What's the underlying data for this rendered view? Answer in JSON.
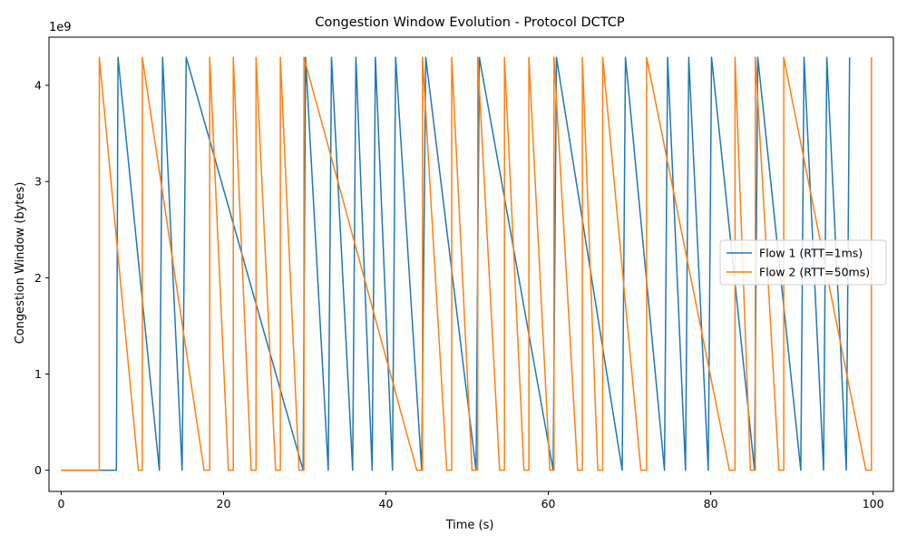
{
  "chart_data": {
    "type": "line",
    "title": "Congestion Window Evolution - Protocol DCTCP",
    "xlabel": "Time (s)",
    "ylabel": "Congestion Window (bytes)",
    "y_offset_label": "1e9",
    "xlim": [
      -1.5,
      102.5
    ],
    "ylim": [
      -0.22,
      4.5
    ],
    "y_scale_multiplier": 1000000000,
    "x_ticks": [
      0,
      20,
      40,
      60,
      80,
      100
    ],
    "y_ticks": [
      0,
      1,
      2,
      3,
      4
    ],
    "grid": false,
    "legend_position": "center-right",
    "series": [
      {
        "name": "Flow 1 (RTT=1ms)",
        "color": "#1f77b4",
        "x": [
          0,
          6.8,
          7.0,
          12.1,
          12.5,
          14.9,
          15.4,
          29.8,
          30.1,
          32.9,
          33.3,
          35.9,
          36.3,
          38.3,
          38.7,
          40.8,
          41.2,
          44.4,
          44.9,
          51.1,
          51.5,
          60.6,
          61.0,
          69.1,
          69.5,
          74.3,
          74.7,
          76.9,
          77.3,
          79.7,
          80.1,
          85.4,
          85.8,
          91.1,
          91.5,
          93.9,
          94.3,
          96.7,
          97.1
        ],
        "y": [
          0,
          0,
          4.29,
          0,
          4.29,
          0,
          4.29,
          0,
          4.29,
          0,
          4.29,
          0,
          4.29,
          0,
          4.29,
          0,
          4.29,
          0,
          4.29,
          0,
          4.29,
          0,
          4.29,
          0,
          4.29,
          0,
          4.29,
          0,
          4.29,
          0,
          4.29,
          0,
          4.29,
          0,
          4.29,
          0,
          4.29,
          0,
          4.29
        ]
      },
      {
        "name": "Flow 2 (RTT=50ms)",
        "color": "#ff7f0e",
        "x": [
          0,
          4.7,
          4.7,
          9.5,
          10.0,
          10.0,
          17.6,
          18.3,
          18.3,
          20.6,
          21.2,
          21.2,
          23.4,
          24.0,
          24.0,
          26.4,
          27.0,
          27.0,
          29.3,
          29.9,
          29.9,
          43.8,
          44.5,
          44.5,
          47.5,
          48.1,
          48.1,
          50.6,
          51.3,
          51.3,
          54.0,
          54.6,
          54.6,
          57.0,
          57.6,
          57.6,
          60.2,
          60.7,
          60.7,
          63.6,
          64.2,
          64.2,
          66.1,
          66.7,
          66.7,
          71.4,
          72.1,
          72.1,
          82.3,
          83.0,
          83.0,
          84.9,
          85.5,
          85.5,
          88.4,
          89.0,
          89.0,
          99.1,
          99.8,
          99.8
        ],
        "y": [
          0,
          0,
          4.29,
          0,
          0,
          4.29,
          0,
          0,
          4.29,
          0,
          0,
          4.29,
          0,
          0,
          4.29,
          0,
          0,
          4.29,
          0,
          0,
          4.29,
          0,
          0,
          4.29,
          0,
          0,
          4.29,
          0,
          0,
          4.29,
          0,
          0,
          4.29,
          0,
          0,
          4.29,
          0,
          0,
          4.29,
          0,
          0,
          4.29,
          0,
          0,
          4.29,
          0,
          0,
          4.29,
          0,
          0,
          4.29,
          0,
          0,
          4.29,
          0,
          0,
          4.29,
          0,
          0,
          4.29
        ]
      }
    ]
  }
}
